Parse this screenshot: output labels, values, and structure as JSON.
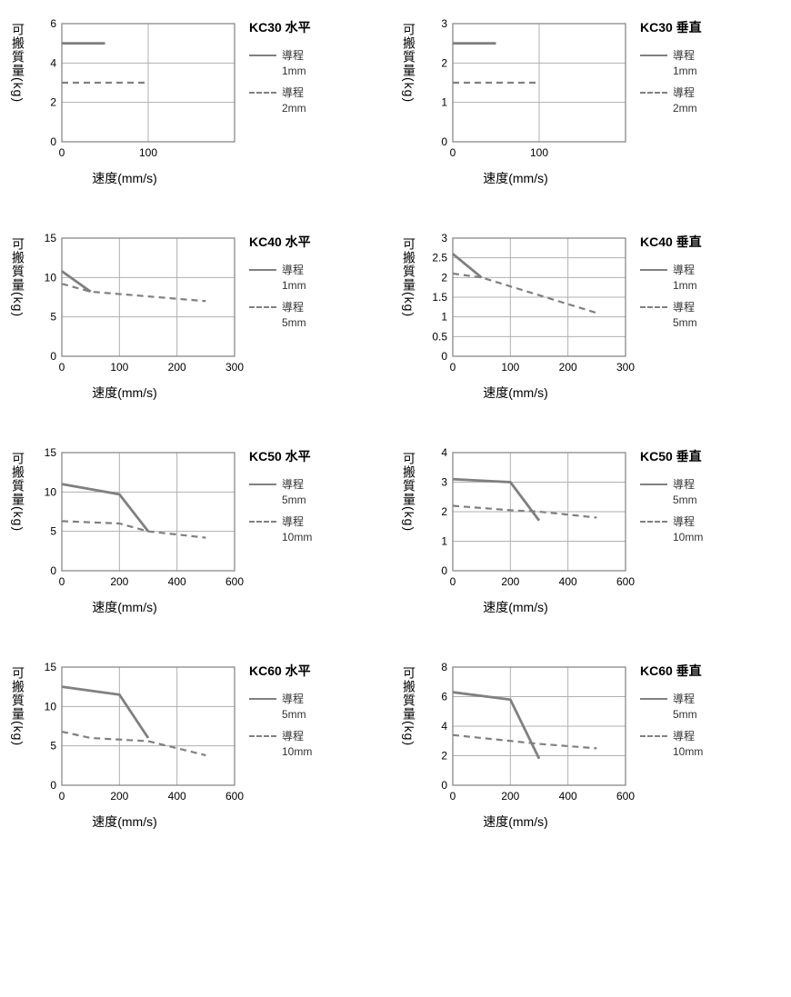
{
  "global": {
    "ylabel": "可搬質量(kg)",
    "xlabel": "速度(mm/s)",
    "legend_series_label": "導程",
    "line_color": "#808080",
    "axis_color": "#808080",
    "grid_color": "#b0b0b0",
    "background_color": "#ffffff",
    "tick_fontsize": 12,
    "label_fontsize": 14,
    "title_fontsize": 14,
    "solid_width": 2.8,
    "dash_width": 2.2,
    "dash_pattern": "7,5"
  },
  "charts": [
    {
      "title": "KC30 水平",
      "xlim": [
        0,
        200
      ],
      "xticks": [
        0,
        100
      ],
      "ylim": [
        0,
        6
      ],
      "yticks": [
        0,
        2,
        4,
        6
      ],
      "series": [
        {
          "style": "solid",
          "label_suffix": "1mm",
          "xs": [
            0,
            50
          ],
          "ys": [
            5,
            5
          ]
        },
        {
          "style": "dash",
          "label_suffix": "2mm",
          "xs": [
            0,
            100
          ],
          "ys": [
            3,
            3
          ]
        }
      ]
    },
    {
      "title": "KC30 垂直",
      "xlim": [
        0,
        200
      ],
      "xticks": [
        0,
        100
      ],
      "ylim": [
        0,
        3
      ],
      "yticks": [
        0,
        1,
        2,
        3
      ],
      "series": [
        {
          "style": "solid",
          "label_suffix": "1mm",
          "xs": [
            0,
            50
          ],
          "ys": [
            2.5,
            2.5
          ]
        },
        {
          "style": "dash",
          "label_suffix": "2mm",
          "xs": [
            0,
            100
          ],
          "ys": [
            1.5,
            1.5
          ]
        }
      ]
    },
    {
      "title": "KC40 水平",
      "xlim": [
        0,
        300
      ],
      "xticks": [
        0,
        100,
        200,
        300
      ],
      "ylim": [
        0,
        15
      ],
      "yticks": [
        0,
        5,
        10,
        15
      ],
      "series": [
        {
          "style": "solid",
          "label_suffix": "1mm",
          "xs": [
            0,
            50
          ],
          "ys": [
            10.8,
            8.2
          ]
        },
        {
          "style": "dash",
          "label_suffix": "5mm",
          "xs": [
            0,
            50,
            250
          ],
          "ys": [
            9.2,
            8.2,
            7
          ]
        }
      ]
    },
    {
      "title": "KC40 垂直",
      "xlim": [
        0,
        300
      ],
      "xticks": [
        0,
        100,
        200,
        300
      ],
      "ylim": [
        0,
        3
      ],
      "yticks": [
        0,
        0.5,
        1,
        1.5,
        2,
        2.5,
        3
      ],
      "series": [
        {
          "style": "solid",
          "label_suffix": "1mm",
          "xs": [
            0,
            50
          ],
          "ys": [
            2.6,
            2.0
          ]
        },
        {
          "style": "dash",
          "label_suffix": "5mm",
          "xs": [
            0,
            50,
            250
          ],
          "ys": [
            2.1,
            2.0,
            1.1
          ]
        }
      ]
    },
    {
      "title": "KC50 水平",
      "xlim": [
        0,
        600
      ],
      "xticks": [
        0,
        200,
        400,
        600
      ],
      "ylim": [
        0,
        15
      ],
      "yticks": [
        0,
        5,
        10,
        15
      ],
      "series": [
        {
          "style": "solid",
          "label_suffix": "5mm",
          "xs": [
            0,
            200,
            300
          ],
          "ys": [
            11,
            9.7,
            5
          ]
        },
        {
          "style": "dash",
          "label_suffix": "10mm",
          "xs": [
            0,
            200,
            300,
            500
          ],
          "ys": [
            6.3,
            6,
            5,
            4.2
          ]
        }
      ]
    },
    {
      "title": "KC50 垂直",
      "xlim": [
        0,
        600
      ],
      "xticks": [
        0,
        200,
        400,
        600
      ],
      "ylim": [
        0,
        4
      ],
      "yticks": [
        0,
        1,
        2,
        3,
        4
      ],
      "series": [
        {
          "style": "solid",
          "label_suffix": "5mm",
          "xs": [
            0,
            200,
            300
          ],
          "ys": [
            3.1,
            3.0,
            1.7
          ]
        },
        {
          "style": "dash",
          "label_suffix": "10mm",
          "xs": [
            0,
            200,
            300,
            500
          ],
          "ys": [
            2.2,
            2.05,
            2.0,
            1.8
          ]
        }
      ]
    },
    {
      "title": "KC60 水平",
      "xlim": [
        0,
        600
      ],
      "xticks": [
        0,
        200,
        400,
        600
      ],
      "ylim": [
        0,
        15
      ],
      "yticks": [
        0,
        5,
        10,
        15
      ],
      "series": [
        {
          "style": "solid",
          "label_suffix": "5mm",
          "xs": [
            0,
            200,
            300
          ],
          "ys": [
            12.5,
            11.5,
            6
          ]
        },
        {
          "style": "dash",
          "label_suffix": "10mm",
          "xs": [
            0,
            100,
            300,
            500
          ],
          "ys": [
            6.8,
            6,
            5.6,
            3.8
          ]
        }
      ]
    },
    {
      "title": "KC60 垂直",
      "xlim": [
        0,
        600
      ],
      "xticks": [
        0,
        200,
        400,
        600
      ],
      "ylim": [
        0,
        8
      ],
      "yticks": [
        0,
        2,
        4,
        6,
        8
      ],
      "series": [
        {
          "style": "solid",
          "label_suffix": "5mm",
          "xs": [
            0,
            200,
            300
          ],
          "ys": [
            6.3,
            5.8,
            1.8
          ]
        },
        {
          "style": "dash",
          "label_suffix": "10mm",
          "xs": [
            0,
            300,
            500
          ],
          "ys": [
            3.4,
            2.8,
            2.5
          ]
        }
      ]
    }
  ]
}
